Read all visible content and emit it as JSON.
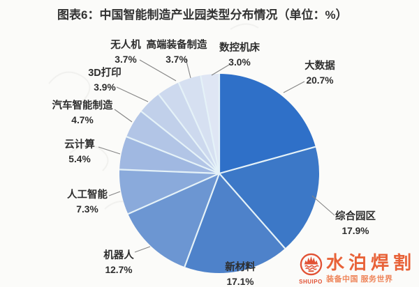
{
  "title": "图表6：中国智能制造产业园类型分布情况（单位：%）",
  "chart_data": {
    "type": "pie",
    "title": "中国智能制造产业园类型分布情况",
    "unit": "%",
    "start_angle_deg": 0,
    "direction": "clockwise",
    "items": [
      {
        "label": "大数据",
        "value": 20.7,
        "pct": "20.7%",
        "color": "#2f70c8"
      },
      {
        "label": "综合园区",
        "value": 17.9,
        "pct": "17.9%",
        "color": "#3c78c7"
      },
      {
        "label": "新材料",
        "value": 17.1,
        "pct": "17.1%",
        "color": "#4e82ca"
      },
      {
        "label": "机器人",
        "value": 12.7,
        "pct": "12.7%",
        "color": "#6c96d2"
      },
      {
        "label": "人工智能",
        "value": 7.3,
        "pct": "7.3%",
        "color": "#8aaadb"
      },
      {
        "label": "云计算",
        "value": 5.4,
        "pct": "5.4%",
        "color": "#a0b8e1"
      },
      {
        "label": "汽车智能制造",
        "value": 4.7,
        "pct": "4.7%",
        "color": "#b2c5e6"
      },
      {
        "label": "3D打印",
        "value": 3.9,
        "pct": "3.9%",
        "color": "#c1d0ea"
      },
      {
        "label": "无人机",
        "value": 3.7,
        "pct": "3.7%",
        "color": "#cdd9ee"
      },
      {
        "label": "高端装备制造",
        "value": 3.7,
        "pct": "3.7%",
        "color": "#d6e0f1"
      },
      {
        "label": "数控机床",
        "value": 3.0,
        "pct": "3.0%",
        "color": "#dfe6f4"
      }
    ]
  },
  "watermark": {
    "brand": "水泊焊割",
    "brand_latin": "SHUIPO",
    "tagline": "装备中国 服务世界",
    "color": "#e4582e"
  }
}
